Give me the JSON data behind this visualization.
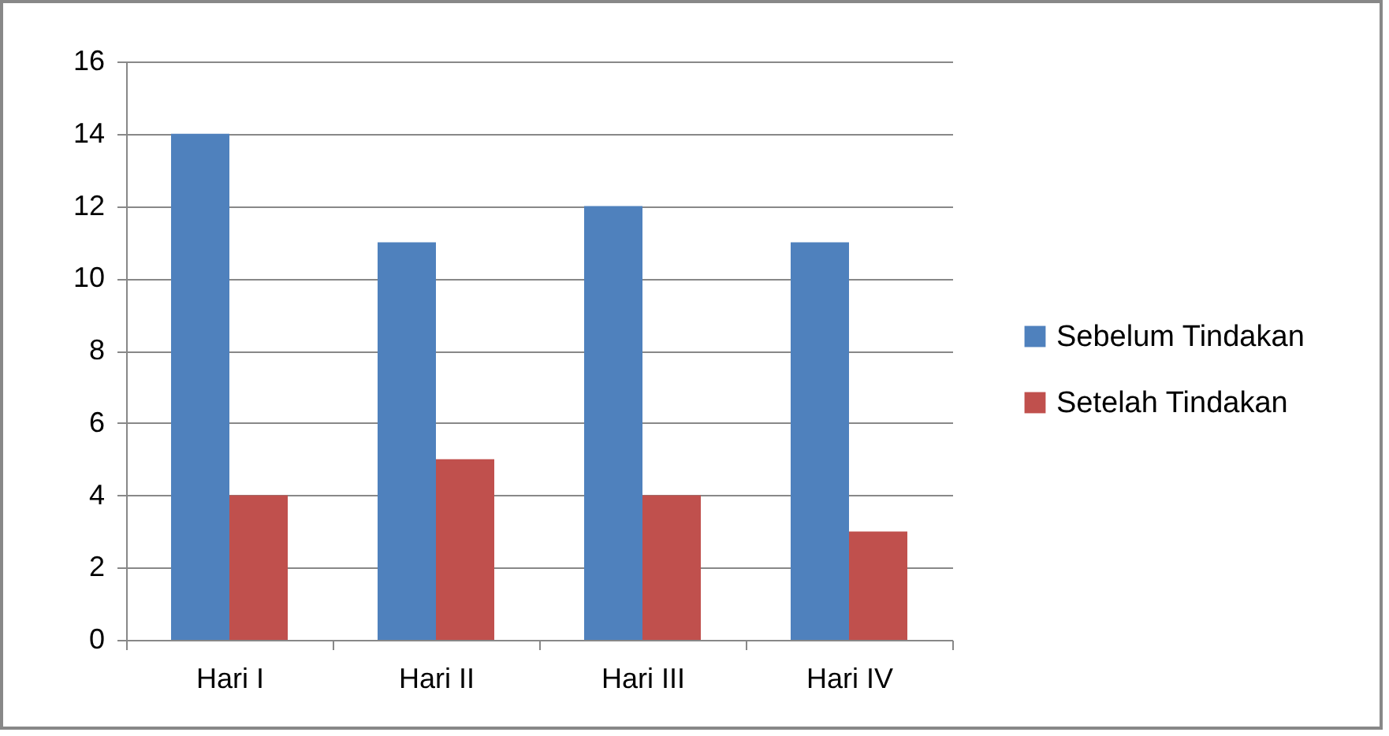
{
  "chart_data": {
    "type": "bar",
    "categories": [
      "Hari I",
      "Hari II",
      "Hari III",
      "Hari IV"
    ],
    "series": [
      {
        "name": "Sebelum Tindakan",
        "color": "#4f81bd",
        "values": [
          14,
          11,
          12,
          11
        ]
      },
      {
        "name": "Setelah Tindakan",
        "color": "#c0504d",
        "values": [
          4,
          5,
          4,
          3
        ]
      }
    ],
    "ylim": [
      0,
      16
    ],
    "yticks": [
      0,
      2,
      4,
      6,
      8,
      10,
      12,
      14,
      16
    ],
    "grid": "y",
    "legend": "right"
  }
}
